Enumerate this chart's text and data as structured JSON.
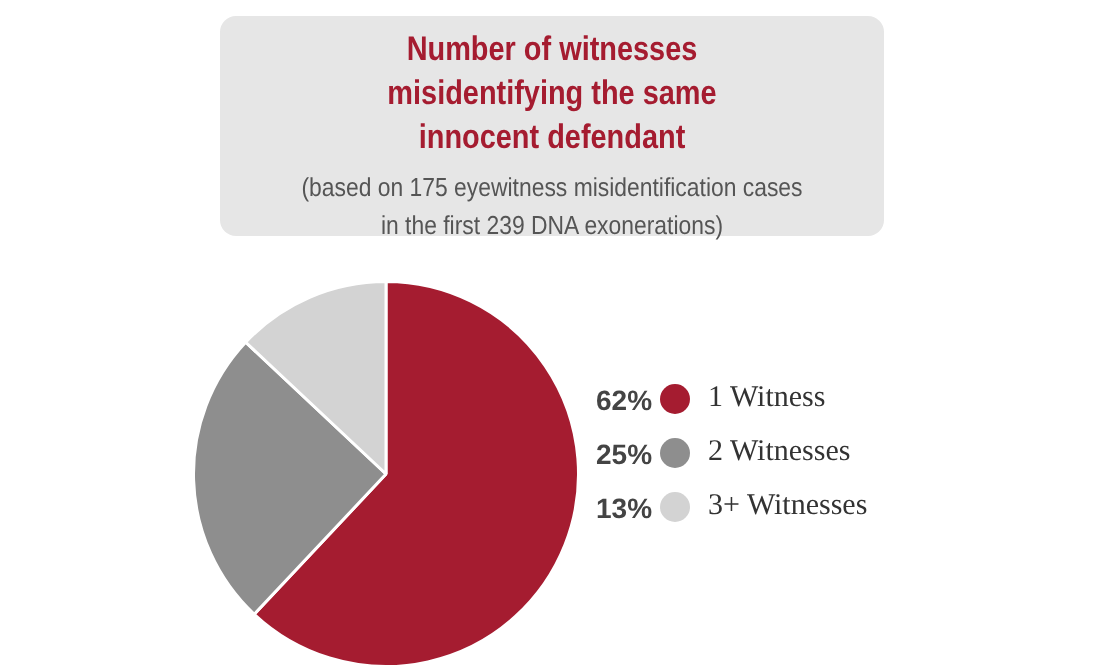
{
  "chart_data": {
    "type": "pie",
    "title": "Number of witnesses misidentifying the same innocent defendant",
    "subtitle": "(based on 175 eyewitness misidentification cases in the first 239 DNA exonerations)",
    "categories": [
      "1 Witness",
      "2 Witnesses",
      "3+ Witnesses"
    ],
    "values": [
      62,
      25,
      13
    ],
    "value_labels": [
      "62%",
      "25%",
      "13%"
    ],
    "colors": [
      "#a51c30",
      "#8e8e8e",
      "#d3d3d3"
    ],
    "legend": "right"
  }
}
